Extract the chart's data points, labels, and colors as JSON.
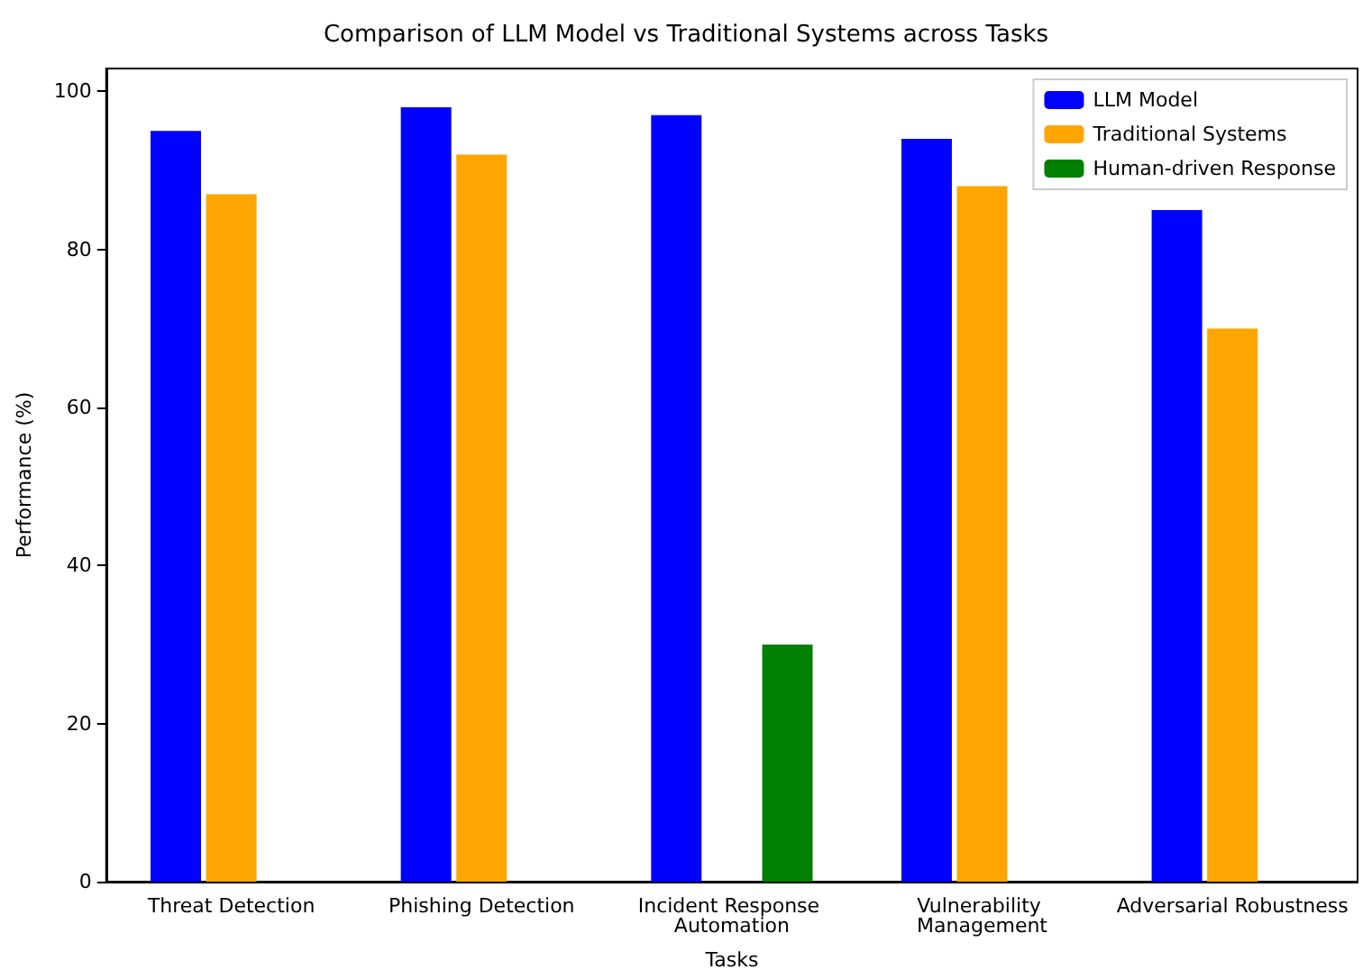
{
  "chart_data": {
    "type": "bar",
    "title": "Comparison of LLM Model vs Traditional Systems across Tasks",
    "xlabel": "Tasks",
    "ylabel": "Performance (%)",
    "categories": [
      "Threat Detection",
      "Phishing Detection",
      "Incident Response Automation",
      "Vulnerability Management",
      "Adversarial Robustness"
    ],
    "series": [
      {
        "name": "LLM Model",
        "color": "#0000ff",
        "values": [
          95,
          98,
          97,
          94,
          85
        ]
      },
      {
        "name": "Traditional Systems",
        "color": "#ffa500",
        "values": [
          87,
          92,
          null,
          88,
          70
        ]
      },
      {
        "name": "Human-driven Response",
        "color": "#008000",
        "values": [
          null,
          null,
          30,
          null,
          null
        ]
      }
    ],
    "ylim": [
      0,
      102.9
    ],
    "yticks": [
      0,
      20,
      40,
      60,
      80,
      100
    ],
    "legend": "top right",
    "grid": false
  }
}
